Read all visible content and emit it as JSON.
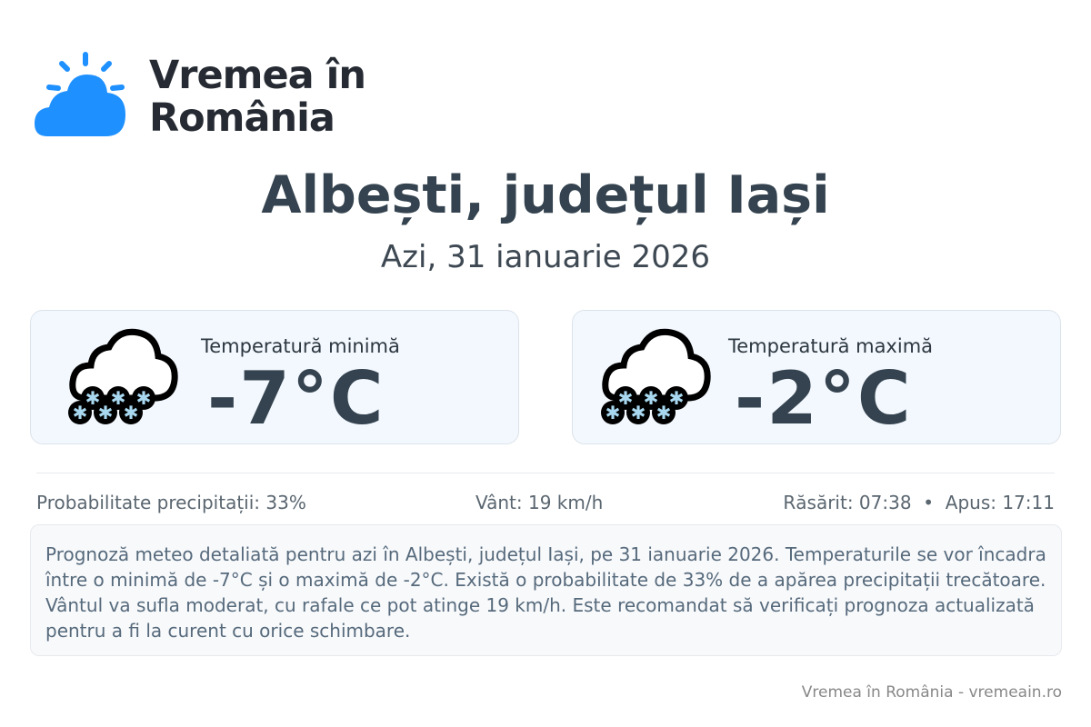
{
  "brand": {
    "name_line1": "Vremea în",
    "name_line2": "România",
    "accent": "#1e90ff"
  },
  "header": {
    "title": "Albești, județul Iași",
    "date": "Azi, 31 ianuarie 2026"
  },
  "cards": [
    {
      "label": "Temperatură minimă",
      "value": "-7°C",
      "icon": "cloud-snow-icon"
    },
    {
      "label": "Temperatură maximă",
      "value": "-2°C",
      "icon": "cloud-snow-icon"
    }
  ],
  "stats": {
    "precipitation": "Probabilitate precipitații: 33%",
    "wind": "Vânt: 19 km/h",
    "sun": "Răsărit: 07:38  •  Apus: 17:11"
  },
  "description": "Prognoză meteo detaliată pentru azi în Albești, județul Iași, pe 31 ianuarie 2026. Temperaturile se vor încadra între o minimă de -7°C și o maximă de -2°C. Există o probabilitate de 33% de a apărea precipitații trecătoare. Vântul va sufla moderat, cu rafale ce pot atinge 19 km/h. Este recomandat să verificați prognoza actualizată pentru a fi la curent cu orice schimbare.",
  "footer": "Vremea în România - vremeain.ro"
}
